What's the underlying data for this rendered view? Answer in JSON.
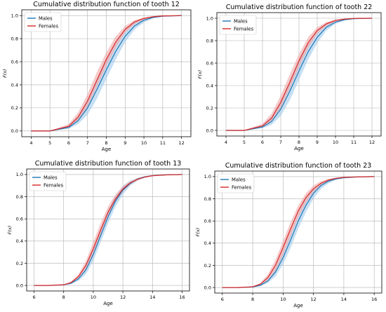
{
  "chart_data": [
    {
      "type": "line",
      "title": "Cumulative distribution function of tooth 12",
      "xlabel": "Age",
      "ylabel": "F(x)",
      "xlim": [
        3.5,
        12.5
      ],
      "ylim": [
        -0.05,
        1.05
      ],
      "xticks": [
        4,
        5,
        6,
        7,
        8,
        9,
        10,
        11,
        12
      ],
      "yticks": [
        0.0,
        0.2,
        0.4,
        0.6,
        0.8,
        1.0
      ],
      "grid": true,
      "legend_position": "top-left",
      "x": [
        4,
        5,
        6,
        6.5,
        7,
        7.5,
        8,
        8.5,
        9,
        9.5,
        10,
        10.5,
        11,
        12
      ],
      "series": [
        {
          "name": "Males",
          "color": "#1f77b4",
          "band_color": "#9ec9ec",
          "values": [
            0.0,
            0.0,
            0.03,
            0.09,
            0.2,
            0.36,
            0.53,
            0.69,
            0.82,
            0.91,
            0.96,
            0.985,
            0.995,
            1.0
          ],
          "lower": [
            0.0,
            0.0,
            0.02,
            0.06,
            0.14,
            0.28,
            0.45,
            0.62,
            0.77,
            0.88,
            0.94,
            0.975,
            0.99,
            1.0
          ],
          "upper": [
            0.0,
            0.0,
            0.05,
            0.13,
            0.27,
            0.44,
            0.61,
            0.76,
            0.87,
            0.94,
            0.975,
            0.99,
            0.998,
            1.0
          ]
        },
        {
          "name": "Females",
          "color": "#d62728",
          "band_color": "#f0a6a6",
          "values": [
            0.0,
            0.0,
            0.04,
            0.12,
            0.26,
            0.44,
            0.62,
            0.77,
            0.88,
            0.945,
            0.975,
            0.99,
            0.997,
            1.0
          ],
          "lower": [
            0.0,
            0.0,
            0.03,
            0.09,
            0.21,
            0.38,
            0.56,
            0.72,
            0.85,
            0.925,
            0.965,
            0.985,
            0.995,
            1.0
          ],
          "upper": [
            0.0,
            0.0,
            0.06,
            0.16,
            0.32,
            0.51,
            0.68,
            0.82,
            0.91,
            0.96,
            0.985,
            0.995,
            0.999,
            1.0
          ]
        }
      ]
    },
    {
      "type": "line",
      "title": "Cumulative distribution function of tooth 22",
      "xlabel": "Age",
      "ylabel": "F(x)",
      "xlim": [
        3.5,
        12.5
      ],
      "ylim": [
        -0.05,
        1.05
      ],
      "xticks": [
        4,
        5,
        6,
        7,
        8,
        9,
        10,
        11,
        12
      ],
      "yticks": [
        0.0,
        0.2,
        0.4,
        0.6,
        0.8,
        1.0
      ],
      "grid": true,
      "legend_position": "top-left",
      "x": [
        4,
        5,
        6,
        6.5,
        7,
        7.5,
        8,
        8.5,
        9,
        9.5,
        10,
        10.5,
        11,
        12
      ],
      "series": [
        {
          "name": "Males",
          "color": "#1f77b4",
          "band_color": "#9ec9ec",
          "values": [
            0.0,
            0.0,
            0.03,
            0.08,
            0.19,
            0.35,
            0.53,
            0.7,
            0.83,
            0.92,
            0.965,
            0.987,
            0.996,
            1.0
          ],
          "lower": [
            0.0,
            0.0,
            0.02,
            0.05,
            0.13,
            0.27,
            0.45,
            0.63,
            0.78,
            0.89,
            0.95,
            0.978,
            0.992,
            1.0
          ],
          "upper": [
            0.0,
            0.0,
            0.05,
            0.12,
            0.26,
            0.43,
            0.61,
            0.77,
            0.88,
            0.95,
            0.98,
            0.993,
            0.998,
            1.0
          ]
        },
        {
          "name": "Females",
          "color": "#d62728",
          "band_color": "#f0a6a6",
          "values": [
            0.0,
            0.0,
            0.04,
            0.11,
            0.25,
            0.43,
            0.62,
            0.78,
            0.89,
            0.95,
            0.98,
            0.992,
            0.998,
            1.0
          ],
          "lower": [
            0.0,
            0.0,
            0.03,
            0.08,
            0.2,
            0.37,
            0.56,
            0.73,
            0.86,
            0.93,
            0.97,
            0.988,
            0.996,
            1.0
          ],
          "upper": [
            0.0,
            0.0,
            0.06,
            0.15,
            0.31,
            0.5,
            0.68,
            0.83,
            0.92,
            0.965,
            0.988,
            0.996,
            0.999,
            1.0
          ]
        }
      ]
    },
    {
      "type": "line",
      "title": "Cumulative distribution function of tooth 13",
      "xlabel": "Age",
      "ylabel": "F(x)",
      "xlim": [
        5.5,
        16.5
      ],
      "ylim": [
        -0.05,
        1.05
      ],
      "xticks": [
        6,
        8,
        10,
        12,
        14,
        16
      ],
      "yticks": [
        0.0,
        0.2,
        0.4,
        0.6,
        0.8,
        1.0
      ],
      "grid": true,
      "legend_position": "top-left",
      "x": [
        6,
        7,
        8,
        8.5,
        9,
        9.5,
        10,
        10.5,
        11,
        11.5,
        12,
        12.5,
        13,
        13.5,
        14,
        15,
        16
      ],
      "series": [
        {
          "name": "Males",
          "color": "#1f77b4",
          "band_color": "#9ec9ec",
          "values": [
            0.0,
            0.0,
            0.005,
            0.02,
            0.06,
            0.14,
            0.28,
            0.45,
            0.62,
            0.76,
            0.86,
            0.92,
            0.96,
            0.98,
            0.99,
            0.998,
            1.0
          ],
          "lower": [
            0.0,
            0.0,
            0.003,
            0.012,
            0.04,
            0.1,
            0.22,
            0.39,
            0.56,
            0.71,
            0.82,
            0.9,
            0.945,
            0.972,
            0.985,
            0.996,
            1.0
          ],
          "upper": [
            0.0,
            0.0,
            0.008,
            0.03,
            0.08,
            0.18,
            0.33,
            0.51,
            0.68,
            0.81,
            0.9,
            0.945,
            0.97,
            0.986,
            0.993,
            0.999,
            1.0
          ]
        },
        {
          "name": "Females",
          "color": "#d62728",
          "band_color": "#f0a6a6",
          "values": [
            0.0,
            0.0,
            0.006,
            0.025,
            0.08,
            0.18,
            0.33,
            0.5,
            0.66,
            0.78,
            0.87,
            0.925,
            0.958,
            0.978,
            0.989,
            0.997,
            1.0
          ],
          "lower": [
            0.0,
            0.0,
            0.004,
            0.017,
            0.06,
            0.14,
            0.27,
            0.44,
            0.61,
            0.75,
            0.845,
            0.91,
            0.948,
            0.972,
            0.985,
            0.995,
            1.0
          ],
          "upper": [
            0.0,
            0.0,
            0.009,
            0.035,
            0.1,
            0.22,
            0.39,
            0.56,
            0.71,
            0.82,
            0.895,
            0.94,
            0.967,
            0.984,
            0.992,
            0.998,
            1.0
          ]
        }
      ]
    },
    {
      "type": "line",
      "title": "Cumulative distribution function of tooth 23",
      "xlabel": "Age",
      "ylabel": "F(x)",
      "xlim": [
        5.5,
        16.5
      ],
      "ylim": [
        -0.05,
        1.05
      ],
      "xticks": [
        6,
        8,
        10,
        12,
        14,
        16
      ],
      "yticks": [
        0.0,
        0.2,
        0.4,
        0.6,
        0.8,
        1.0
      ],
      "grid": true,
      "legend_position": "top-left",
      "x": [
        6,
        7,
        8,
        8.5,
        9,
        9.5,
        10,
        10.5,
        11,
        11.5,
        12,
        12.5,
        13,
        13.5,
        14,
        15,
        16
      ],
      "series": [
        {
          "name": "Males",
          "color": "#1f77b4",
          "band_color": "#9ec9ec",
          "values": [
            0.0,
            0.0,
            0.005,
            0.02,
            0.06,
            0.14,
            0.27,
            0.43,
            0.6,
            0.74,
            0.85,
            0.92,
            0.96,
            0.98,
            0.99,
            0.998,
            1.0
          ],
          "lower": [
            0.0,
            0.0,
            0.003,
            0.012,
            0.04,
            0.1,
            0.21,
            0.36,
            0.53,
            0.68,
            0.8,
            0.89,
            0.94,
            0.97,
            0.985,
            0.996,
            1.0
          ],
          "upper": [
            0.0,
            0.0,
            0.008,
            0.03,
            0.085,
            0.18,
            0.33,
            0.5,
            0.67,
            0.8,
            0.89,
            0.945,
            0.973,
            0.988,
            0.994,
            0.999,
            1.0
          ]
        },
        {
          "name": "Females",
          "color": "#d62728",
          "band_color": "#f0a6a6",
          "values": [
            0.0,
            0.0,
            0.007,
            0.03,
            0.09,
            0.2,
            0.36,
            0.53,
            0.69,
            0.81,
            0.89,
            0.94,
            0.97,
            0.985,
            0.993,
            0.998,
            1.0
          ],
          "lower": [
            0.0,
            0.0,
            0.005,
            0.02,
            0.065,
            0.15,
            0.29,
            0.46,
            0.63,
            0.76,
            0.86,
            0.92,
            0.96,
            0.978,
            0.989,
            0.997,
            1.0
          ],
          "upper": [
            0.0,
            0.0,
            0.01,
            0.04,
            0.12,
            0.25,
            0.42,
            0.59,
            0.74,
            0.85,
            0.92,
            0.958,
            0.98,
            0.99,
            0.995,
            0.999,
            1.0
          ]
        }
      ]
    }
  ]
}
